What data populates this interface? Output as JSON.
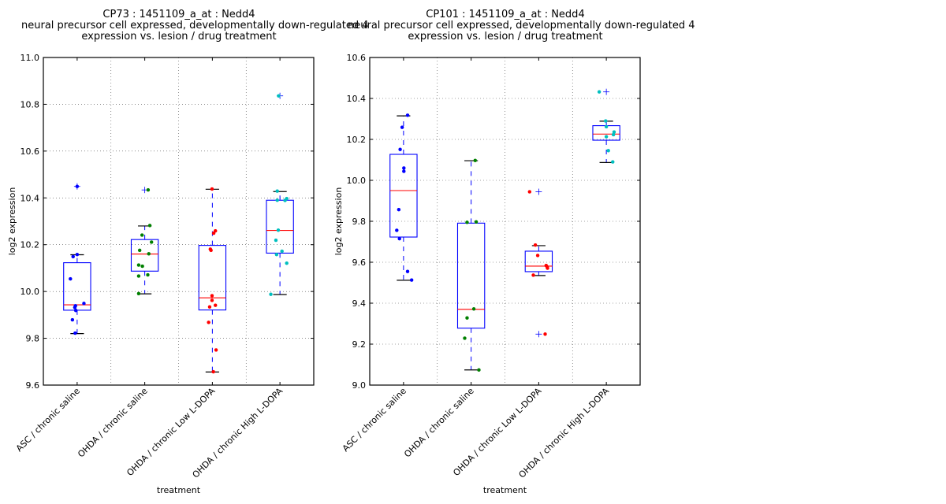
{
  "chart_data": [
    {
      "type": "boxplot",
      "title_lines": [
        "CP73 : 1451109_a_at : Nedd4",
        "neural precursor cell expressed, developmentally down-regulated 4",
        "expression vs. lesion / drug treatment"
      ],
      "xlabel": "treatment",
      "ylabel": "log2 expression",
      "ylim": [
        9.6,
        11.0
      ],
      "yticks": [
        "9.6",
        "9.8",
        "10.0",
        "10.2",
        "10.4",
        "10.6",
        "10.8",
        "11.0"
      ],
      "grid": true,
      "categories": [
        "ASC / chronic saline",
        "OHDA / chronic saline",
        "OHDA / chronic Low L-DOPA",
        "OHDA / chronic High L-DOPA"
      ],
      "point_colors": [
        "#0000ff",
        "#008000",
        "#ff0000",
        "#00bfbf"
      ],
      "boxes": [
        {
          "whisker_low": 9.82,
          "q1": 9.92,
          "median": 9.943,
          "q3": 10.123,
          "whisker_high": 10.157,
          "outliers": [
            10.449
          ],
          "points": [
            10.449,
            10.158,
            10.149,
            10.054,
            9.949,
            9.939,
            9.932,
            9.919,
            9.879,
            9.822
          ],
          "jitter": [
            0.0,
            0.0,
            -0.12,
            -0.2,
            0.2,
            -0.05,
            -0.07,
            -0.04,
            -0.14,
            -0.06
          ]
        },
        {
          "whisker_low": 9.99,
          "q1": 10.087,
          "median": 10.16,
          "q3": 10.222,
          "whisker_high": 10.28,
          "outliers": [
            10.434
          ],
          "points": [
            10.434,
            10.282,
            10.241,
            10.211,
            10.176,
            10.161,
            10.113,
            10.108,
            10.071,
            10.066,
            9.991
          ],
          "jitter": [
            0.1,
            0.15,
            -0.08,
            0.2,
            -0.15,
            0.12,
            -0.18,
            -0.07,
            0.09,
            -0.18,
            -0.18
          ]
        },
        {
          "whisker_low": 9.656,
          "q1": 9.921,
          "median": 9.973,
          "q3": 10.197,
          "whisker_high": 10.437,
          "outliers": [],
          "points": [
            10.438,
            10.259,
            10.249,
            10.181,
            10.176,
            9.982,
            9.962,
            9.941,
            9.934,
            9.868,
            9.75,
            9.657
          ],
          "jitter": [
            -0.01,
            0.09,
            0.04,
            -0.06,
            -0.04,
            -0.01,
            -0.01,
            0.09,
            -0.08,
            -0.11,
            0.11,
            0.03
          ]
        },
        {
          "whisker_low": 9.987,
          "q1": 10.164,
          "median": 10.261,
          "q3": 10.39,
          "whisker_high": 10.427,
          "outliers": [
            10.836
          ],
          "points": [
            10.836,
            10.429,
            10.397,
            10.39,
            10.389,
            10.262,
            10.219,
            10.172,
            10.158,
            10.121,
            9.988
          ],
          "jitter": [
            -0.04,
            -0.08,
            0.2,
            -0.08,
            0.15,
            -0.05,
            -0.12,
            0.06,
            -0.1,
            0.2,
            -0.27
          ]
        }
      ],
      "flier_markers": [
        10.449,
        10.434,
        10.836
      ]
    },
    {
      "type": "boxplot",
      "title_lines": [
        "CP101 : 1451109_a_at : Nedd4",
        "neural precursor cell expressed, developmentally down-regulated 4",
        "expression vs. lesion / drug treatment"
      ],
      "xlabel": "treatment",
      "ylabel": "log2 expression",
      "ylim": [
        9.0,
        10.6
      ],
      "yticks": [
        "9.0",
        "9.2",
        "9.4",
        "9.6",
        "9.8",
        "10.0",
        "10.2",
        "10.4",
        "10.6"
      ],
      "grid": true,
      "categories": [
        "ASC / chronic saline",
        "OHDA / chronic saline",
        "OHDA / chronic Low L-DOPA",
        "OHDA / chronic High L-DOPA"
      ],
      "point_colors": [
        "#0000ff",
        "#008000",
        "#ff0000",
        "#00bfbf"
      ],
      "boxes": [
        {
          "whisker_low": 9.512,
          "q1": 9.723,
          "median": 9.95,
          "q3": 10.127,
          "whisker_high": 10.315,
          "outliers": [],
          "points": [
            10.318,
            10.259,
            10.151,
            10.06,
            10.044,
            9.857,
            9.756,
            9.715,
            9.555,
            9.513
          ],
          "jitter": [
            0.12,
            -0.04,
            -0.1,
            0.01,
            0.01,
            -0.14,
            -0.2,
            -0.12,
            0.12,
            0.24
          ]
        },
        {
          "whisker_low": 9.074,
          "q1": 9.278,
          "median": 9.37,
          "q3": 9.791,
          "whisker_high": 10.096,
          "outliers": [],
          "points": [
            10.097,
            9.797,
            9.795,
            9.372,
            9.328,
            9.229,
            9.074
          ],
          "jitter": [
            0.12,
            0.15,
            -0.12,
            0.08,
            -0.12,
            -0.19,
            0.23
          ]
        },
        {
          "whisker_low": 9.535,
          "q1": 9.554,
          "median": 9.581,
          "q3": 9.654,
          "whisker_high": 9.681,
          "outliers": [
            9.944,
            9.249
          ],
          "points": [
            9.944,
            9.684,
            9.633,
            9.584,
            9.577,
            9.571,
            9.537,
            9.249
          ],
          "jitter": [
            -0.27,
            -0.1,
            -0.03,
            0.22,
            0.25,
            0.26,
            -0.16,
            0.19
          ]
        },
        {
          "whisker_low": 10.087,
          "q1": 10.196,
          "median": 10.226,
          "q3": 10.267,
          "whisker_high": 10.289,
          "outliers": [
            10.432
          ],
          "points": [
            10.432,
            10.29,
            10.262,
            10.236,
            10.223,
            10.213,
            10.145,
            10.09
          ],
          "jitter": [
            -0.21,
            -0.02,
            0.0,
            0.23,
            0.21,
            0.0,
            0.06,
            0.19
          ]
        }
      ],
      "flier_markers": [
        9.944,
        9.249,
        10.432
      ]
    }
  ]
}
